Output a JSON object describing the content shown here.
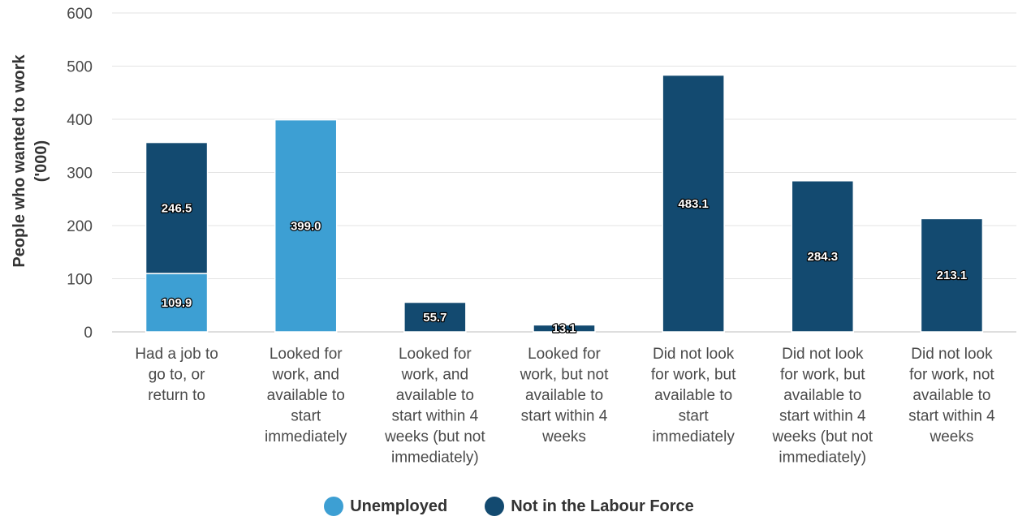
{
  "chart_data": {
    "type": "bar",
    "stacked": true,
    "title": "",
    "xlabel": "",
    "ylabel_lines": [
      "People who wanted to work",
      "('000)"
    ],
    "ylim": [
      0,
      600
    ],
    "yticks": [
      0,
      100,
      200,
      300,
      400,
      500,
      600
    ],
    "grid": true,
    "legend_placement": "bottom-center",
    "categories": [
      [
        "Had a job to",
        "go to, or",
        "return to"
      ],
      [
        "Looked for",
        "work, and",
        "available to",
        "start",
        "immediately"
      ],
      [
        "Looked for",
        "work, and",
        "available to",
        "start within 4",
        "weeks (but not",
        "immediately)"
      ],
      [
        "Looked for",
        "work, but not",
        "available to",
        "start within 4",
        "weeks"
      ],
      [
        "Did not look",
        "for work, but",
        "available to",
        "start",
        "immediately"
      ],
      [
        "Did not look",
        "for work, but",
        "available to",
        "start within 4",
        "weeks (but not",
        "immediately)"
      ],
      [
        "Did not look",
        "for work, not",
        "available to",
        "start within 4",
        "weeks"
      ]
    ],
    "series": [
      {
        "name": "Unemployed",
        "color": "#3d9fd3",
        "values": [
          109.9,
          399.0,
          null,
          null,
          null,
          null,
          null
        ]
      },
      {
        "name": "Not in the Labour Force",
        "color": "#134a70",
        "values": [
          246.5,
          null,
          55.7,
          13.1,
          483.1,
          284.3,
          213.1
        ]
      }
    ]
  }
}
